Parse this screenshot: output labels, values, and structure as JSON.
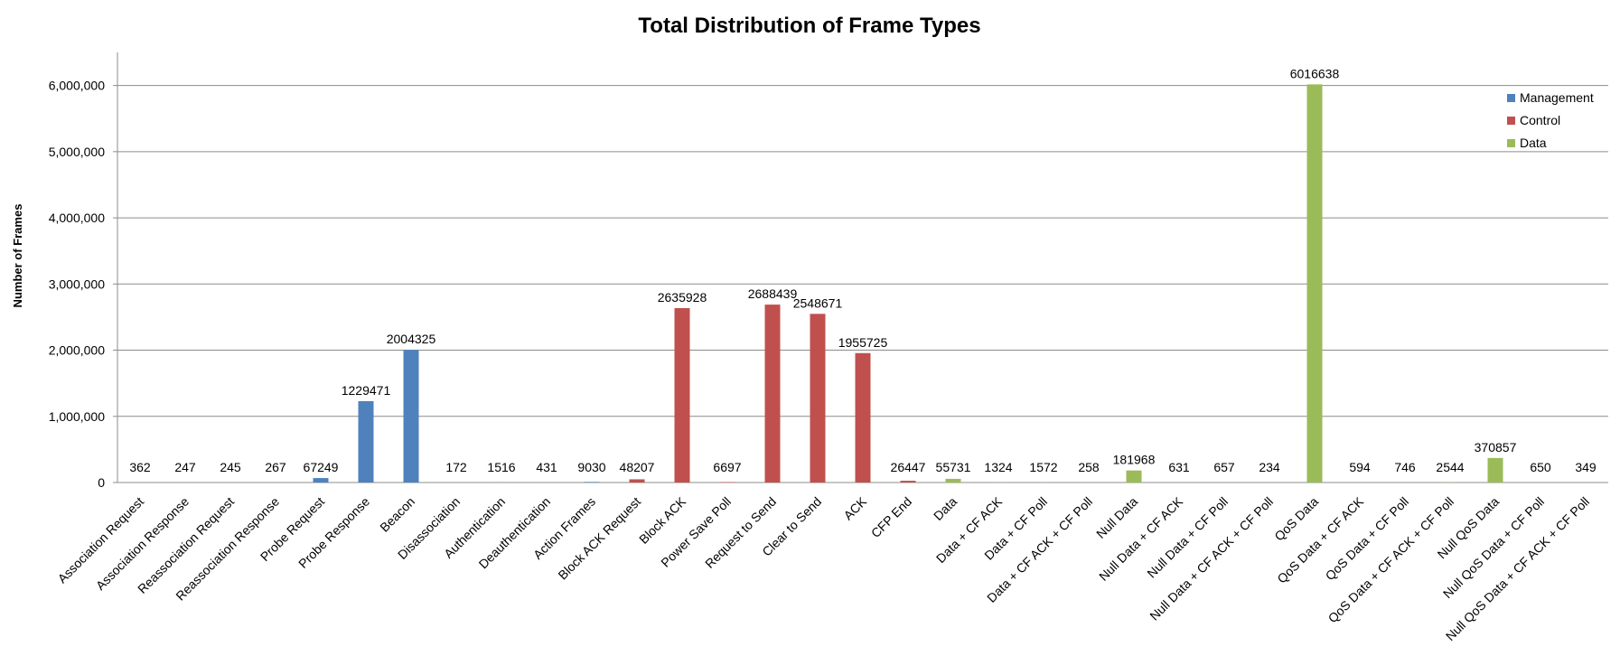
{
  "chart_data": {
    "type": "bar",
    "title": "Total Distribution of Frame Types",
    "xlabel": "",
    "ylabel": "Number of Frames",
    "ylim": [
      0,
      6500000
    ],
    "yticks": [
      0,
      1000000,
      2000000,
      3000000,
      4000000,
      5000000,
      6000000
    ],
    "ytick_labels": [
      "0",
      "1,000,000",
      "2,000,000",
      "3,000,000",
      "4,000,000",
      "5,000,000",
      "6,000,000"
    ],
    "grid": true,
    "legend_position": "top-right",
    "categories": [
      "Association Request",
      "Association Response",
      "Reassociation Request",
      "Reassociation Response",
      "Probe Request",
      "Probe Response",
      "Beacon",
      "Disassociation",
      "Authentication",
      "Deauthentication",
      "Action Frames",
      "Block ACK Request",
      "Block ACK",
      "Power Save Poll",
      "Request to Send",
      "Clear to Send",
      "ACK",
      "CFP End",
      "Data",
      "Data + CF ACK",
      "Data + CF Poll",
      "Data + CF ACK + CF Poll",
      "Null Data",
      "Null Data + CF ACK",
      "Null Data + CF Poll",
      "Null Data + CF ACK + CF Poll",
      "QoS Data",
      "QoS Data + CF ACK",
      "QoS Data + CF Poll",
      "QoS Data + CF ACK + CF Poll",
      "Null QoS Data",
      "Null QoS Data + CF Poll",
      "Null QoS Data + CF ACK + CF Poll"
    ],
    "series": [
      {
        "name": "Management",
        "color": "#4f81bd",
        "values": [
          362,
          247,
          245,
          267,
          67249,
          1229471,
          2004325,
          172,
          1516,
          431,
          9030,
          null,
          null,
          null,
          null,
          null,
          null,
          null,
          null,
          null,
          null,
          null,
          null,
          null,
          null,
          null,
          null,
          null,
          null,
          null,
          null,
          null,
          null
        ]
      },
      {
        "name": "Control",
        "color": "#c0504d",
        "values": [
          null,
          null,
          null,
          null,
          null,
          null,
          null,
          null,
          null,
          null,
          null,
          48207,
          2635928,
          6697,
          2688439,
          2548671,
          1955725,
          26447,
          null,
          null,
          null,
          null,
          null,
          null,
          null,
          null,
          null,
          null,
          null,
          null,
          null,
          null,
          null
        ]
      },
      {
        "name": "Data",
        "color": "#9bbb59",
        "values": [
          null,
          null,
          null,
          null,
          null,
          null,
          null,
          null,
          null,
          null,
          null,
          null,
          null,
          null,
          null,
          null,
          null,
          null,
          55731,
          1324,
          1572,
          258,
          181968,
          631,
          657,
          234,
          6016638,
          594,
          746,
          2544,
          370857,
          650,
          349
        ]
      }
    ]
  }
}
